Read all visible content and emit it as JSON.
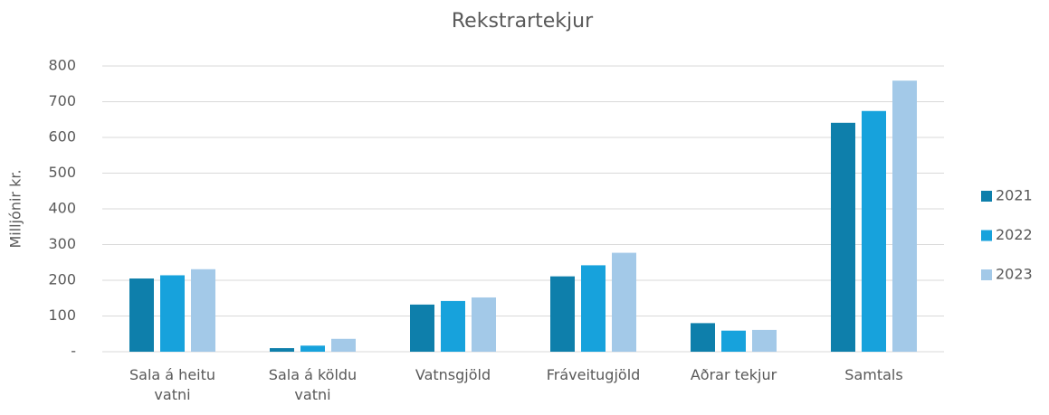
{
  "chart_data": {
    "type": "bar",
    "title": "Rekstrartekjur",
    "y_label": "Milljónir kr.",
    "categories": [
      "Sala á heitu vatni",
      "Sala á köldu vatni",
      "Vatnsgjöld",
      "Fráveitugjöld",
      "Aðrar tekjur",
      "Samtals"
    ],
    "series": [
      {
        "name": "2021",
        "color": "#0e7fab",
        "values": [
          205,
          10,
          132,
          211,
          80,
          641
        ]
      },
      {
        "name": "2022",
        "color": "#17a2dc",
        "values": [
          214,
          17,
          142,
          242,
          59,
          674
        ]
      },
      {
        "name": "2023",
        "color": "#a3c9e8",
        "values": [
          231,
          36,
          152,
          277,
          61,
          759
        ]
      }
    ],
    "ylim": [
      0,
      800
    ],
    "yticks": [
      {
        "value": 0,
        "label": "-"
      },
      100,
      200,
      300,
      400,
      500,
      600,
      700,
      800
    ],
    "grid": true,
    "legend": "right"
  }
}
